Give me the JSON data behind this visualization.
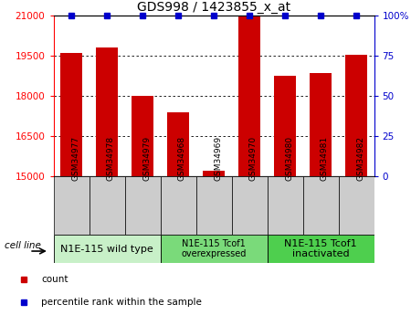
{
  "title": "GDS998 / 1423855_x_at",
  "samples": [
    "GSM34977",
    "GSM34978",
    "GSM34979",
    "GSM34968",
    "GSM34969",
    "GSM34970",
    "GSM34980",
    "GSM34981",
    "GSM34982"
  ],
  "counts": [
    19600,
    19800,
    18000,
    17400,
    15200,
    21000,
    18750,
    18850,
    19550
  ],
  "percentiles": [
    100,
    100,
    100,
    100,
    100,
    100,
    100,
    100,
    100
  ],
  "ylim_left": [
    15000,
    21000
  ],
  "ylim_right": [
    0,
    100
  ],
  "yticks_left": [
    15000,
    16500,
    18000,
    19500,
    21000
  ],
  "yticks_right": [
    0,
    25,
    50,
    75,
    100
  ],
  "groups": [
    {
      "label": "N1E-115 wild type",
      "start": 0,
      "end": 3,
      "color": "#c8f0c8",
      "fontsize": 8
    },
    {
      "label": "N1E-115 Tcof1\noverexpressed",
      "start": 3,
      "end": 6,
      "color": "#7ada7a",
      "fontsize": 7
    },
    {
      "label": "N1E-115 Tcof1\ninactivated",
      "start": 6,
      "end": 9,
      "color": "#4ecf4e",
      "fontsize": 8
    }
  ],
  "bar_color": "#cc0000",
  "percentile_color": "#0000cc",
  "bar_width": 0.6,
  "background_color": "#ffffff",
  "tick_box_color": "#cccccc",
  "grid_color": "#000000",
  "legend_items": [
    {
      "color": "#cc0000",
      "label": "count"
    },
    {
      "color": "#0000cc",
      "label": "percentile rank within the sample"
    }
  ],
  "cell_line_label": "cell line"
}
